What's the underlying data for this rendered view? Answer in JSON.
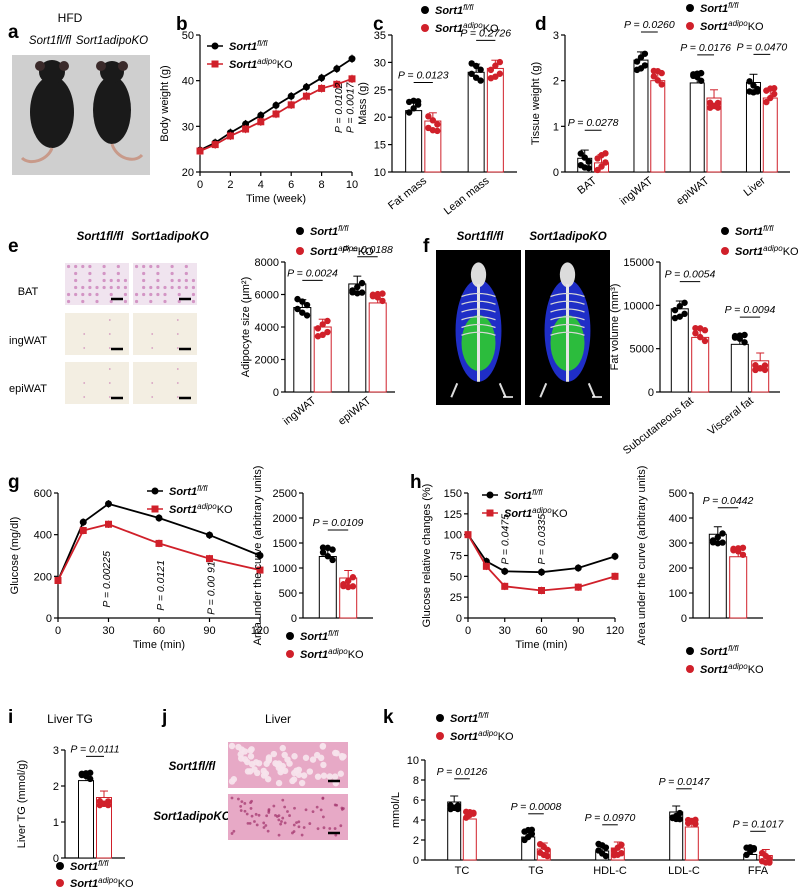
{
  "colors": {
    "ctrl": "#000000",
    "ko": "#d0202a",
    "micro_bg": "#f3eee2",
    "micro_pink": "#c060a8",
    "he_bg": "#e7a9c6",
    "ct_bg": "#000000",
    "fat": "#2ecc2e",
    "lean": "#2233dd"
  },
  "legend": {
    "ctrl": "Sort1fl/fl",
    "ko": "Sort1adipoKO"
  },
  "icons": {
    "marker": "filled-circle",
    "marker_ko": "filled-square"
  },
  "panels": {
    "a": {
      "label": "a",
      "title": "HFD",
      "mouse_left": "Sort1fl/fl",
      "mouse_right": "Sort1adipoKO"
    },
    "e": {
      "label": "e",
      "col_left": "Sort1fl/fl",
      "col_right": "Sort1adipoKO",
      "rows": [
        "BAT",
        "ingWAT",
        "epiWAT"
      ]
    },
    "f": {
      "label": "f",
      "col_left": "Sort1fl/fl",
      "col_right": "Sort1adipoKO"
    },
    "j": {
      "label": "j",
      "title": "Liver",
      "row_top": "Sort1fl/fl",
      "row_bottom": "Sort1adipoKO"
    }
  },
  "chart_data": [
    {
      "id": "b",
      "label": "b",
      "type": "line",
      "xlabel": "Time (week)",
      "ylabel": "Body weight (g)",
      "xlim": [
        0,
        10
      ],
      "ylim": [
        20,
        50
      ],
      "xticks": [
        0,
        2,
        4,
        6,
        8,
        10
      ],
      "yticks": [
        20,
        30,
        40,
        50
      ],
      "x": [
        0,
        1,
        2,
        3,
        4,
        5,
        6,
        7,
        8,
        9,
        10
      ],
      "series": [
        {
          "name": "Sort1fl/fl",
          "values": [
            24.8,
            26.4,
            28.6,
            30.5,
            32.4,
            34.6,
            36.6,
            38.6,
            40.6,
            42.6,
            44.8
          ]
        },
        {
          "name": "Sort1adipoKO",
          "values": [
            24.6,
            26.0,
            27.9,
            29.4,
            31.0,
            32.7,
            34.7,
            36.6,
            38.3,
            39.2,
            40.4
          ]
        }
      ],
      "annotations": [
        "P = 0.0102",
        "P = 0.0017"
      ]
    },
    {
      "id": "c",
      "label": "c",
      "type": "bar",
      "ylabel": "Mass (g)",
      "categories": [
        "Fat mass",
        "Lean mass"
      ],
      "ylim": [
        10,
        35
      ],
      "yticks": [
        10,
        15,
        20,
        25,
        30,
        35
      ],
      "series": [
        {
          "name": "Sort1fl/fl",
          "values": [
            21.2,
            28.2
          ]
        },
        {
          "name": "Sort1adipoKO",
          "values": [
            19.3,
            28.9
          ]
        }
      ],
      "pvalues": [
        "P = 0.0123",
        "P = 0.2726"
      ]
    },
    {
      "id": "d",
      "label": "d",
      "type": "bar",
      "ylabel": "Tissue weight (g)",
      "categories": [
        "BAT",
        "ingWAT",
        "epiWAT",
        "Liver"
      ],
      "ylim": [
        0,
        3
      ],
      "yticks": [
        0,
        1,
        2,
        3
      ],
      "series": [
        {
          "name": "Sort1fl/fl",
          "values": [
            0.3,
            2.45,
            1.95,
            1.96
          ]
        },
        {
          "name": "Sort1adipoKO",
          "values": [
            0.2,
            2.0,
            1.62,
            1.62
          ]
        }
      ],
      "pvalues": [
        "P = 0.0278",
        "P = 0.0260",
        "P = 0.0176",
        "P = 0.0470"
      ]
    },
    {
      "id": "e2",
      "type": "bar",
      "ylabel": "Adipocyte size (μm²)",
      "categories": [
        "ingWAT",
        "epiWAT"
      ],
      "ylim": [
        0,
        8000
      ],
      "yticks": [
        0,
        2000,
        4000,
        6000,
        8000
      ],
      "series": [
        {
          "name": "Sort1fl/fl",
          "values": [
            5200,
            6650
          ]
        },
        {
          "name": "Sort1adipoKO",
          "values": [
            4000,
            5480
          ]
        }
      ],
      "pvalues": [
        "P = 0.0024",
        "P = 0.0188"
      ]
    },
    {
      "id": "f2",
      "type": "bar",
      "ylabel": "Fat volume (mm³)",
      "categories": [
        "Subcutaneous fat",
        "Visceral fat"
      ],
      "ylim": [
        0,
        15000
      ],
      "yticks": [
        0,
        5000,
        10000,
        15000
      ],
      "series": [
        {
          "name": "Sort1fl/fl",
          "values": [
            9600,
            5500
          ]
        },
        {
          "name": "Sort1adipoKO",
          "values": [
            6300,
            3600
          ]
        }
      ],
      "pvalues": [
        "P = 0.0054",
        "P = 0.0094"
      ]
    },
    {
      "id": "g",
      "label": "g",
      "type": "line",
      "xlabel": "Time (min)",
      "ylabel": "Glucose (mg/dl)",
      "xlim": [
        0,
        120
      ],
      "ylim": [
        0,
        600
      ],
      "xticks": [
        0,
        30,
        60,
        90,
        120
      ],
      "yticks": [
        0,
        200,
        400,
        600
      ],
      "x": [
        0,
        15,
        30,
        60,
        90,
        120
      ],
      "series": [
        {
          "name": "Sort1fl/fl",
          "values": [
            180,
            460,
            548,
            480,
            398,
            300
          ]
        },
        {
          "name": "Sort1adipoKO",
          "values": [
            180,
            420,
            450,
            358,
            285,
            230
          ]
        }
      ],
      "annotations": [
        "P = 0.00225",
        "P = 0.0121",
        "P = 0.00 91"
      ]
    },
    {
      "id": "g2",
      "type": "bar",
      "ylabel": "Area under the curve (arbitrary units)",
      "categories": [
        ""
      ],
      "ylim": [
        0,
        2500
      ],
      "yticks": [
        0,
        500,
        1000,
        1500,
        2000,
        2500
      ],
      "series": [
        {
          "name": "Sort1fl/fl",
          "values": [
            1230
          ]
        },
        {
          "name": "Sort1adipoKO",
          "values": [
            800
          ]
        }
      ],
      "pvalues": [
        "P = 0.0109"
      ]
    },
    {
      "id": "h",
      "label": "h",
      "type": "line",
      "xlabel": "Time (min)",
      "ylabel": "Glucose relative changes (%)",
      "xlim": [
        0,
        120
      ],
      "ylim": [
        0,
        150
      ],
      "xticks": [
        0,
        30,
        60,
        90,
        120
      ],
      "yticks": [
        0,
        25,
        50,
        75,
        100,
        125,
        150
      ],
      "x": [
        0,
        15,
        30,
        60,
        90,
        120
      ],
      "series": [
        {
          "name": "Sort1fl/fl",
          "values": [
            100,
            68,
            56,
            55,
            60,
            74
          ]
        },
        {
          "name": "Sort1adipoKO",
          "values": [
            100,
            62,
            38,
            33,
            37,
            50
          ]
        }
      ],
      "annotations": [
        "P = 0.0475",
        "P = 0.0335"
      ]
    },
    {
      "id": "h2",
      "type": "bar",
      "ylabel": "Area under the curve (arbitrary units)",
      "categories": [
        ""
      ],
      "ylim": [
        0,
        500
      ],
      "yticks": [
        0,
        100,
        200,
        300,
        400,
        500
      ],
      "series": [
        {
          "name": "Sort1fl/fl",
          "values": [
            335
          ]
        },
        {
          "name": "Sort1adipoKO",
          "values": [
            245
          ]
        }
      ],
      "pvalues": [
        "P = 0.0442"
      ]
    },
    {
      "id": "i",
      "label": "i",
      "title": "Liver TG",
      "type": "bar",
      "ylabel": "Liver TG (mmol/g)",
      "categories": [
        ""
      ],
      "ylim": [
        0,
        3
      ],
      "yticks": [
        0,
        1,
        2,
        3
      ],
      "series": [
        {
          "name": "Sort1fl/fl",
          "values": [
            2.15
          ]
        },
        {
          "name": "Sort1adipoKO",
          "values": [
            1.68
          ]
        }
      ],
      "pvalues": [
        "P = 0.0111"
      ]
    },
    {
      "id": "k",
      "label": "k",
      "type": "bar",
      "ylabel": "mmol/L",
      "categories": [
        "TC",
        "TG",
        "HDL-C",
        "LDL-C",
        "FFA"
      ],
      "ylim": [
        0,
        10
      ],
      "yticks": [
        0,
        2,
        4,
        6,
        8,
        10
      ],
      "series": [
        {
          "name": "Sort1fl/fl",
          "values": [
            5.8,
            2.3,
            0.9,
            4.8,
            0.55
          ]
        },
        {
          "name": "Sort1adipoKO",
          "values": [
            4.1,
            1.1,
            1.2,
            3.3,
            0.45
          ]
        }
      ],
      "pvalues": [
        "P = 0.0126",
        "P = 0.0008",
        "P = 0.0970",
        "P = 0.0147",
        "P = 0.1017"
      ]
    }
  ]
}
